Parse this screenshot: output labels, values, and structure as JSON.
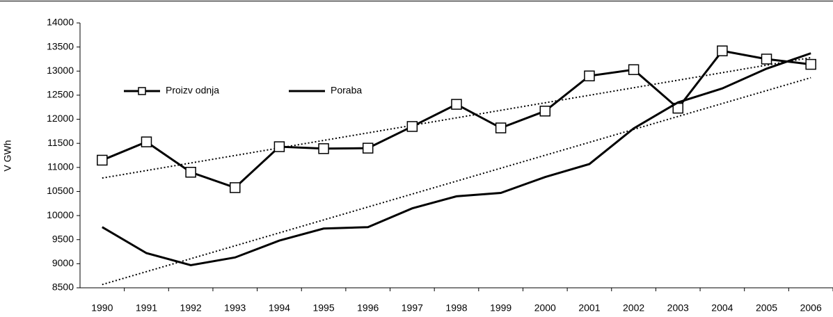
{
  "chart_data": {
    "type": "line",
    "y_label": "V GWh",
    "categories": [
      "1990",
      "1991",
      "1992",
      "1993",
      "1994",
      "1995",
      "1996",
      "1997",
      "1998",
      "1999",
      "2000",
      "2001",
      "2002",
      "2003",
      "2004",
      "2005",
      "2006"
    ],
    "series": [
      {
        "name": "Proizv odnja",
        "color": "#000000",
        "marker": "square",
        "values": [
          11150,
          11530,
          10900,
          10580,
          11430,
          11390,
          11400,
          11850,
          12310,
          11820,
          12170,
          12900,
          13030,
          12230,
          13420,
          13250,
          13140
        ]
      },
      {
        "name": "Poraba",
        "color": "#000000",
        "values": [
          9760,
          9220,
          8970,
          9130,
          9480,
          9730,
          9760,
          10150,
          10400,
          10470,
          10800,
          11070,
          11810,
          12350,
          12640,
          13050,
          13370
        ]
      }
    ],
    "trendline": true,
    "ylim": [
      8500,
      14000
    ],
    "yticks": [
      8500,
      9000,
      9500,
      10000,
      10500,
      11000,
      11500,
      12000,
      12500,
      13000,
      13500,
      14000
    ]
  }
}
